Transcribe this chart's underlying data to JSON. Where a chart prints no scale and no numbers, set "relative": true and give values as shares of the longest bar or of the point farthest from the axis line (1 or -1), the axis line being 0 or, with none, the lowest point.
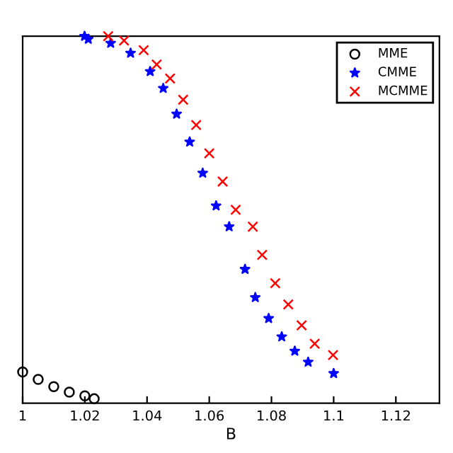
{
  "chart_data": {
    "type": "scatter",
    "xlabel": "B",
    "relative": true,
    "xlim": [
      1,
      1.134
    ],
    "xticks": [
      1,
      1.02,
      1.04,
      1.06,
      1.08,
      1.1,
      1.12
    ],
    "legend": "top right",
    "grid": false,
    "series": [
      {
        "name": "MME",
        "color": "#000000",
        "marker": "circle",
        "x": [
          1.0,
          1.005,
          1.01,
          1.015,
          1.02,
          1.023
        ],
        "values": [
          0.085,
          0.065,
          0.045,
          0.03,
          0.02,
          0.012
        ]
      },
      {
        "name": "CMME",
        "color": "#0000ff",
        "marker": "star",
        "x": [
          1.0199,
          1.0211,
          1.0283,
          1.0347,
          1.041,
          1.0452,
          1.0495,
          1.0537,
          1.0579,
          1.0622,
          1.0664,
          1.0715,
          1.0748,
          1.0791,
          1.0833,
          1.0875,
          1.0918,
          1.1
        ],
        "values": [
          1.0,
          0.992,
          0.981,
          0.954,
          0.904,
          0.858,
          0.788,
          0.712,
          0.627,
          0.538,
          0.481,
          0.365,
          0.288,
          0.231,
          0.181,
          0.142,
          0.112,
          0.081
        ]
      },
      {
        "name": "MCMME",
        "color": "#ff0000",
        "marker": "cross",
        "x": [
          1.0275,
          1.0326,
          1.0389,
          1.0431,
          1.0474,
          1.0516,
          1.0558,
          1.06,
          1.0643,
          1.0685,
          1.074,
          1.077,
          1.0812,
          1.0854,
          1.0897,
          1.0939,
          1.0998
        ],
        "values": [
          1.0,
          0.988,
          0.962,
          0.923,
          0.885,
          0.827,
          0.758,
          0.681,
          0.604,
          0.527,
          0.481,
          0.404,
          0.327,
          0.269,
          0.212,
          0.162,
          0.131
        ]
      }
    ]
  }
}
